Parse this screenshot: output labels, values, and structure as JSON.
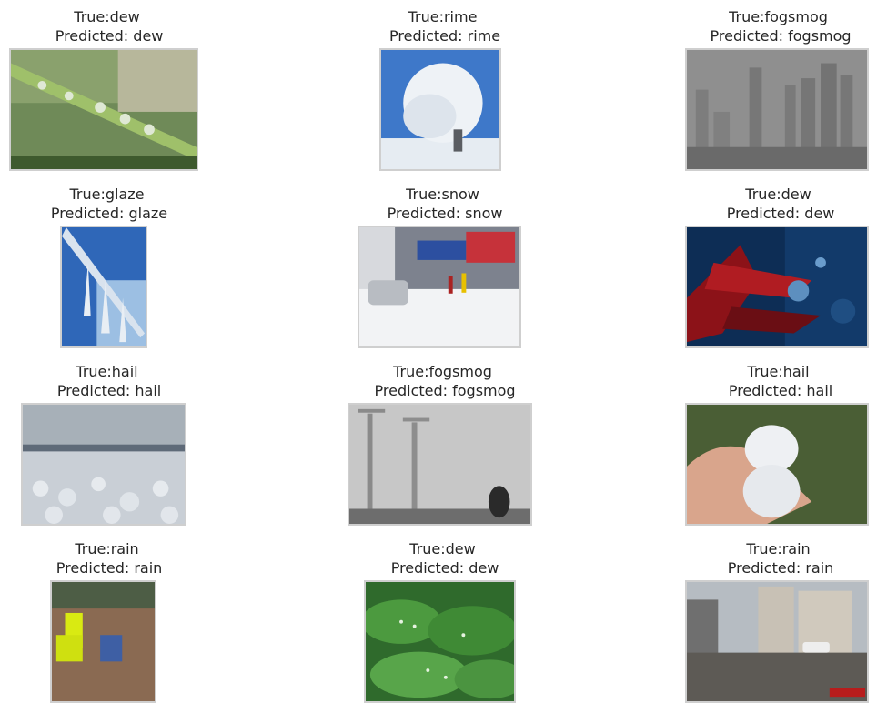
{
  "grid": [
    {
      "true_label": "True:dew",
      "pred_label": " Predicted: dew"
    },
    {
      "true_label": "True:rime",
      "pred_label": " Predicted: rime"
    },
    {
      "true_label": "True:fogsmog",
      "pred_label": " Predicted: fogsmog"
    },
    {
      "true_label": "True:glaze",
      "pred_label": " Predicted: glaze"
    },
    {
      "true_label": "True:snow",
      "pred_label": " Predicted: snow"
    },
    {
      "true_label": "True:dew",
      "pred_label": " Predicted: dew"
    },
    {
      "true_label": "True:hail",
      "pred_label": " Predicted: hail"
    },
    {
      "true_label": "True:fogsmog",
      "pred_label": " Predicted: fogsmog"
    },
    {
      "true_label": "True:hail",
      "pred_label": " Predicted: hail"
    },
    {
      "true_label": "True:rain",
      "pred_label": " Predicted: rain"
    },
    {
      "true_label": "True:dew",
      "pred_label": " Predicted: dew"
    },
    {
      "true_label": "True:rain",
      "pred_label": " Predicted: rain"
    }
  ]
}
